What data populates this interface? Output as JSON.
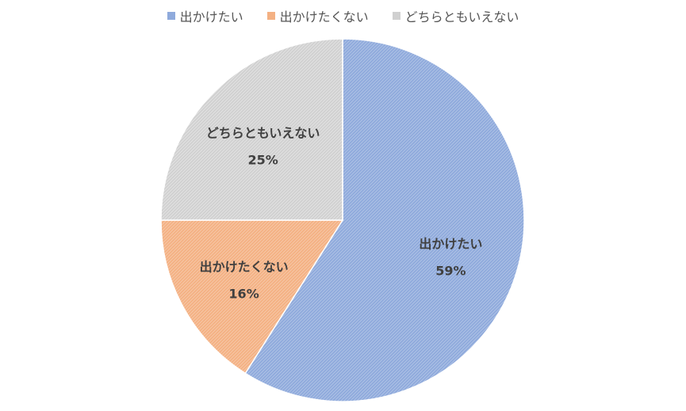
{
  "chart_data": {
    "type": "pie",
    "title": "",
    "legend_position": "top",
    "categories": [
      "出かけたい",
      "出かけたくない",
      "どちらともいえない"
    ],
    "values": [
      59,
      16,
      25
    ],
    "value_labels": [
      "59%",
      "16%",
      "25%"
    ],
    "colors": [
      "#8faadc",
      "#f4b183",
      "#d0d0d0"
    ],
    "stroke_colors": [
      "#8faadc",
      "#f4b183",
      "#d9d9d9"
    ]
  }
}
